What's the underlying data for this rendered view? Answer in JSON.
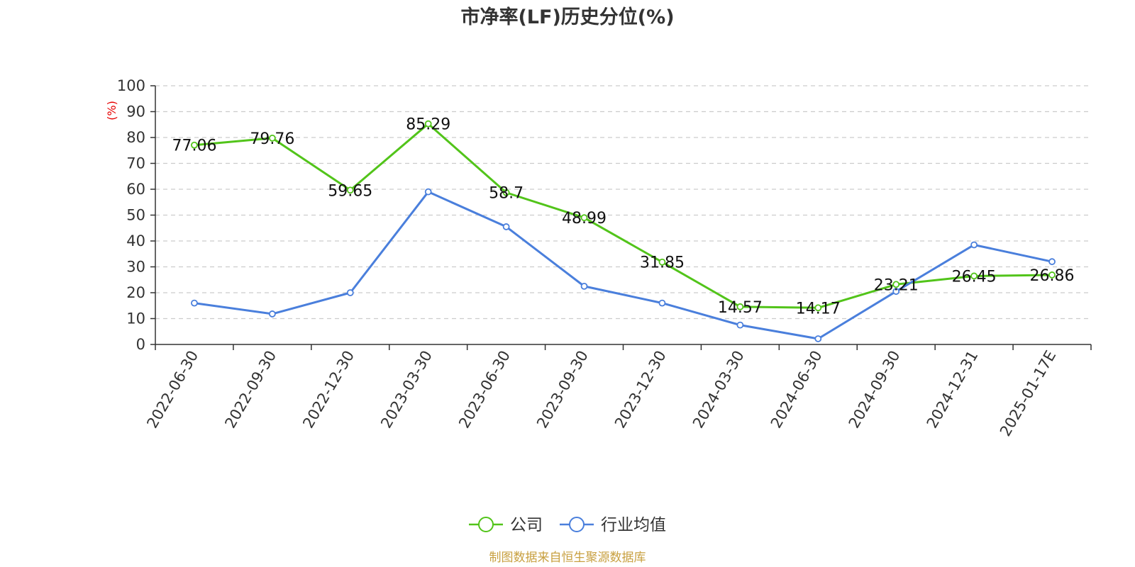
{
  "chart_data": {
    "type": "line",
    "title": "市净率(LF)历史分位(%)",
    "ylabel": "(%)",
    "ylim": [
      0,
      100
    ],
    "yticks": [
      0,
      10,
      20,
      30,
      40,
      50,
      60,
      70,
      80,
      90,
      100
    ],
    "categories": [
      "2022-06-30",
      "2022-09-30",
      "2022-12-30",
      "2023-03-30",
      "2023-06-30",
      "2023-09-30",
      "2023-12-30",
      "2024-03-30",
      "2024-06-30",
      "2024-09-30",
      "2024-12-31",
      "2025-01-17E"
    ],
    "grid": true,
    "legend_position": "bottom-center",
    "series": [
      {
        "name": "公司",
        "color": "#52c41a",
        "values": [
          77.06,
          79.76,
          59.65,
          85.29,
          58.7,
          48.99,
          31.85,
          14.57,
          14.17,
          23.21,
          26.45,
          26.86
        ],
        "labels": [
          "77.06",
          "79.76",
          "59.65",
          "85.29",
          "58.7",
          "48.99",
          "31.85",
          "14.57",
          "14.17",
          "23.21",
          "26.45",
          "26.86"
        ]
      },
      {
        "name": "行业均值",
        "color": "#4a7fdc",
        "values": [
          16.0,
          11.8,
          20.0,
          59.0,
          45.5,
          22.5,
          16.0,
          7.5,
          2.2,
          20.5,
          38.5,
          32.0
        ]
      }
    ]
  },
  "colors": {
    "unit_label": "#e60000",
    "source": "#c8a040",
    "grid": "#cccccc",
    "axis": "#333333"
  },
  "source_text": "制图数据来自恒生聚源数据库"
}
